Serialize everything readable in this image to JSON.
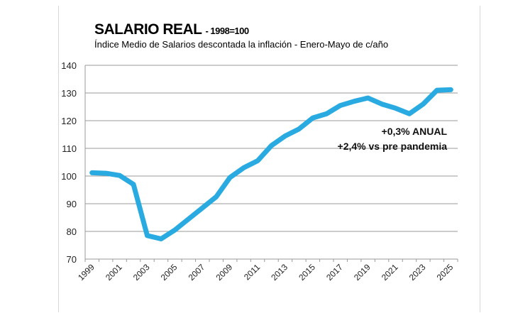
{
  "chart_data": {
    "type": "line",
    "title": "SALARIO REAL",
    "title_suffix": "- 1998=100",
    "subtitle": "Índice Medio de Salarios descontada la inflación - Enero-Mayo de c/año",
    "xlabel": "",
    "ylabel": "",
    "ylim": [
      70,
      140
    ],
    "yticks": [
      70,
      80,
      90,
      100,
      110,
      120,
      130,
      140
    ],
    "x": [
      1999,
      2000,
      2001,
      2002,
      2003,
      2004,
      2005,
      2006,
      2007,
      2008,
      2009,
      2010,
      2011,
      2012,
      2013,
      2014,
      2015,
      2016,
      2017,
      2018,
      2019,
      2020,
      2021,
      2022,
      2023,
      2024,
      2025
    ],
    "xtick_labels": [
      "1999",
      "2001",
      "2003",
      "2005",
      "2007",
      "2009",
      "2011",
      "2013",
      "2015",
      "2017",
      "2019",
      "2021",
      "2023",
      "2025"
    ],
    "series": [
      {
        "name": "Salario real",
        "color": "#29abe2",
        "values": [
          101.2,
          101,
          100.2,
          97,
          78.5,
          77.3,
          80.5,
          84.5,
          88.5,
          92.5,
          99.5,
          103,
          105.5,
          111,
          114.5,
          117,
          121,
          122.5,
          125.5,
          127,
          128.2,
          126,
          124.5,
          122.5,
          126,
          131,
          131.2
        ]
      }
    ],
    "grid": true,
    "annotations": [
      "+0,3% ANUAL",
      "+2,4% vs pre pandemia"
    ]
  }
}
